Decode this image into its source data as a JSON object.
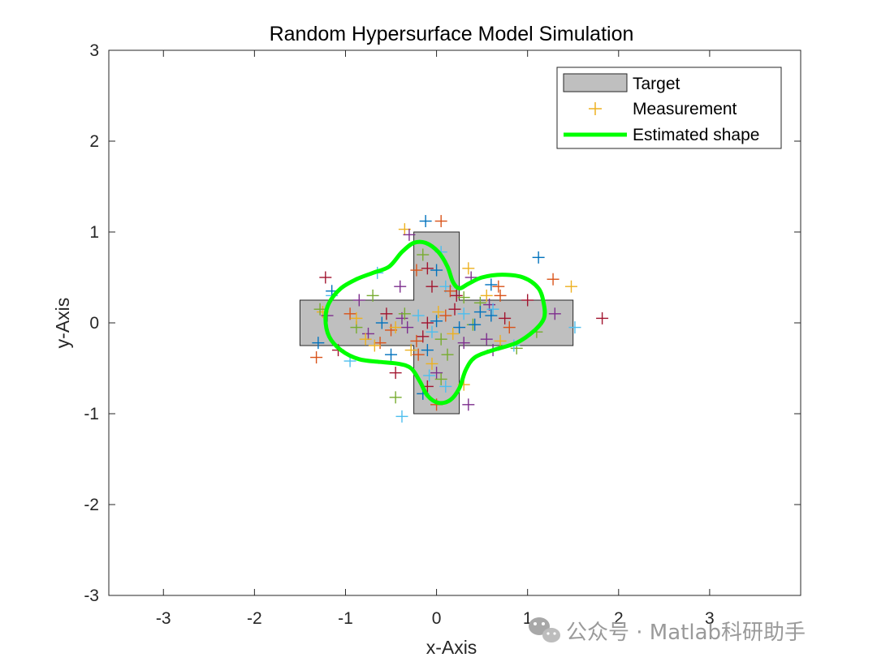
{
  "chart_data": {
    "type": "scatter",
    "title": "Random Hypersurface Model Simulation",
    "xlabel": "x-Axis",
    "ylabel": "y-Axis",
    "xlim": [
      -3.6,
      4.0
    ],
    "ylim": [
      -3,
      3
    ],
    "xticks": [
      -3,
      -2,
      -1,
      0,
      1,
      2,
      3
    ],
    "xtick_labels": [
      "-3",
      "-2",
      "-1",
      "0",
      "1",
      "2",
      "3"
    ],
    "yticks": [
      -3,
      -2,
      -1,
      0,
      1,
      2,
      3
    ],
    "ytick_labels": [
      "-3",
      "-2",
      "-1",
      "0",
      "1",
      "2",
      "3"
    ],
    "grid": false,
    "legend_placement": "top-right",
    "legend": [
      {
        "label": "Target",
        "kind": "patch",
        "color": "#bfbfbf"
      },
      {
        "label": "Measurement",
        "kind": "marker",
        "color": "#EDB120"
      },
      {
        "label": "Estimated shape",
        "kind": "line",
        "color": "#00ff00"
      }
    ],
    "target_polygon": [
      [
        -0.25,
        1.0
      ],
      [
        0.25,
        1.0
      ],
      [
        0.25,
        0.25
      ],
      [
        1.5,
        0.25
      ],
      [
        1.5,
        -0.25
      ],
      [
        0.25,
        -0.25
      ],
      [
        0.25,
        -1.0
      ],
      [
        -0.25,
        -1.0
      ],
      [
        -0.25,
        -0.25
      ],
      [
        -1.5,
        -0.25
      ],
      [
        -1.5,
        0.25
      ],
      [
        -0.25,
        0.25
      ]
    ],
    "target_color": "#bfbfbf",
    "estimated_shape_color": "#00ff00",
    "estimated_shape": [
      [
        1.18,
        0.2
      ],
      [
        1.12,
        0.38
      ],
      [
        0.95,
        0.5
      ],
      [
        0.72,
        0.53
      ],
      [
        0.5,
        0.5
      ],
      [
        0.35,
        0.43
      ],
      [
        0.25,
        0.38
      ],
      [
        0.18,
        0.45
      ],
      [
        0.12,
        0.62
      ],
      [
        0.02,
        0.78
      ],
      [
        -0.12,
        0.88
      ],
      [
        -0.25,
        0.88
      ],
      [
        -0.38,
        0.78
      ],
      [
        -0.52,
        0.62
      ],
      [
        -0.7,
        0.55
      ],
      [
        -0.88,
        0.48
      ],
      [
        -1.05,
        0.38
      ],
      [
        -1.18,
        0.22
      ],
      [
        -1.22,
        0.05
      ],
      [
        -1.18,
        -0.15
      ],
      [
        -1.05,
        -0.3
      ],
      [
        -0.85,
        -0.4
      ],
      [
        -0.62,
        -0.43
      ],
      [
        -0.42,
        -0.45
      ],
      [
        -0.28,
        -0.5
      ],
      [
        -0.18,
        -0.65
      ],
      [
        -0.1,
        -0.8
      ],
      [
        0.02,
        -0.88
      ],
      [
        0.15,
        -0.85
      ],
      [
        0.25,
        -0.72
      ],
      [
        0.32,
        -0.52
      ],
      [
        0.42,
        -0.38
      ],
      [
        0.62,
        -0.3
      ],
      [
        0.88,
        -0.22
      ],
      [
        1.08,
        -0.08
      ],
      [
        1.18,
        0.05
      ]
    ],
    "measurement_colors": [
      "#0072BD",
      "#D95319",
      "#EDB120",
      "#7E2F8E",
      "#77AC30",
      "#4DBEEE",
      "#A2142F"
    ],
    "measurements": [
      [
        -0.12,
        1.12
      ],
      [
        0.05,
        1.12
      ],
      [
        -0.35,
        1.03
      ],
      [
        -0.3,
        0.97
      ],
      [
        -0.15,
        0.75
      ],
      [
        0.05,
        0.78
      ],
      [
        -0.1,
        0.6
      ],
      [
        0.0,
        0.58
      ],
      [
        -0.22,
        0.58
      ],
      [
        0.35,
        0.6
      ],
      [
        0.38,
        0.5
      ],
      [
        0.3,
        0.28
      ],
      [
        0.1,
        0.4
      ],
      [
        -0.05,
        0.4
      ],
      [
        0.6,
        0.42
      ],
      [
        0.7,
        0.3
      ],
      [
        0.55,
        0.3
      ],
      [
        0.58,
        0.2
      ],
      [
        0.48,
        0.22
      ],
      [
        0.62,
        0.15
      ],
      [
        0.75,
        0.05
      ],
      [
        0.6,
        0.08
      ],
      [
        0.8,
        -0.05
      ],
      [
        0.7,
        -0.2
      ],
      [
        0.55,
        -0.18
      ],
      [
        0.4,
        -0.02
      ],
      [
        0.3,
        0.1
      ],
      [
        0.2,
        0.15
      ],
      [
        0.25,
        -0.05
      ],
      [
        0.1,
        0.08
      ],
      [
        0.18,
        -0.12
      ],
      [
        0.3,
        -0.22
      ],
      [
        0.05,
        -0.18
      ],
      [
        -0.05,
        -0.1
      ],
      [
        -0.15,
        -0.15
      ],
      [
        -0.1,
        -0.3
      ],
      [
        -0.2,
        -0.35
      ],
      [
        -0.05,
        -0.45
      ],
      [
        0.0,
        -0.55
      ],
      [
        0.05,
        -0.62
      ],
      [
        0.1,
        -0.7
      ],
      [
        -0.1,
        -0.7
      ],
      [
        -0.15,
        -0.78
      ],
      [
        0.0,
        -0.9
      ],
      [
        0.3,
        -0.68
      ],
      [
        0.35,
        -0.9
      ],
      [
        -0.45,
        -0.82
      ],
      [
        -0.38,
        -1.03
      ],
      [
        -0.45,
        -0.55
      ],
      [
        -0.5,
        -0.35
      ],
      [
        -0.62,
        -0.22
      ],
      [
        -0.68,
        -0.25
      ],
      [
        -0.75,
        -0.12
      ],
      [
        -0.88,
        -0.05
      ],
      [
        -0.95,
        -0.42
      ],
      [
        -1.08,
        -0.3
      ],
      [
        -1.3,
        -0.22
      ],
      [
        -1.32,
        -0.38
      ],
      [
        -1.25,
        0.12
      ],
      [
        -1.2,
        0.08
      ],
      [
        -1.28,
        0.15
      ],
      [
        -1.15,
        0.3
      ],
      [
        -1.22,
        0.5
      ],
      [
        -1.15,
        0.35
      ],
      [
        -0.95,
        0.1
      ],
      [
        -0.88,
        0.05
      ],
      [
        -0.85,
        0.25
      ],
      [
        -0.7,
        0.3
      ],
      [
        -0.65,
        0.55
      ],
      [
        -0.55,
        0.1
      ],
      [
        -0.6,
        0.0
      ],
      [
        -0.5,
        -0.08
      ],
      [
        -0.45,
        -0.05
      ],
      [
        -0.38,
        0.05
      ],
      [
        -0.35,
        0.1
      ],
      [
        -0.2,
        0.08
      ],
      [
        -0.1,
        0.0
      ],
      [
        0.0,
        0.02
      ],
      [
        -0.22,
        -0.2
      ],
      [
        -0.28,
        -0.3
      ],
      [
        0.62,
        -0.3
      ],
      [
        0.88,
        -0.28
      ],
      [
        0.85,
        -0.25
      ],
      [
        1.0,
        0.25
      ],
      [
        1.12,
        0.72
      ],
      [
        1.28,
        0.48
      ],
      [
        1.48,
        0.4
      ],
      [
        1.3,
        0.1
      ],
      [
        1.1,
        -0.1
      ],
      [
        1.52,
        -0.05
      ],
      [
        1.82,
        0.05
      ],
      [
        0.42,
        -0.02
      ],
      [
        0.15,
        0.35
      ],
      [
        0.02,
        0.12
      ],
      [
        -0.32,
        -0.05
      ],
      [
        0.12,
        -0.35
      ],
      [
        -0.08,
        -0.58
      ],
      [
        0.22,
        0.3
      ],
      [
        0.48,
        0.12
      ],
      [
        0.68,
        0.4
      ],
      [
        -0.78,
        -0.18
      ],
      [
        -0.4,
        0.4
      ]
    ]
  },
  "watermark": {
    "text": "公众号 · Matlab科研助手",
    "icon": "wechat-icon"
  }
}
